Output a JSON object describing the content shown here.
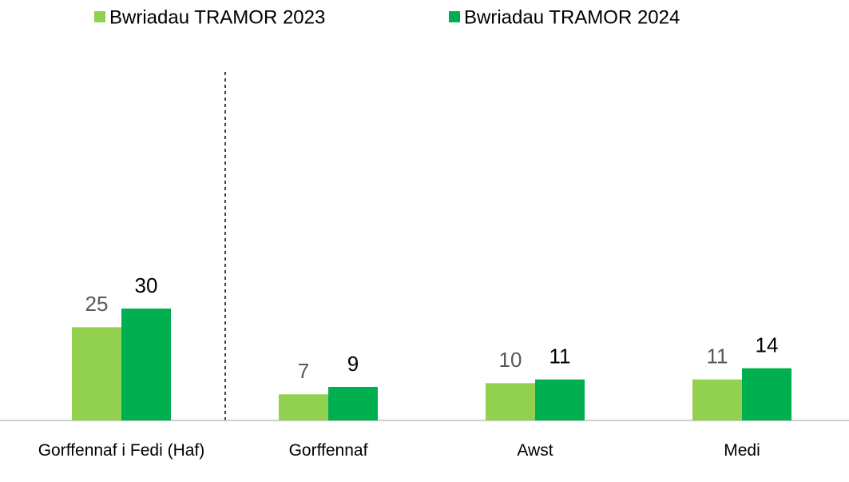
{
  "chart_data": {
    "type": "bar",
    "categories": [
      "Gorffennaf i Fedi (Haf)",
      "Gorffennaf",
      "Awst",
      "Medi"
    ],
    "series": [
      {
        "name": "Bwriadau TRAMOR 2023",
        "color": "#92d050",
        "label_color": "#595959",
        "values": [
          25,
          7,
          10,
          11
        ]
      },
      {
        "name": "Bwriadau TRAMOR 2024",
        "color": "#00b050",
        "label_color": "#000000",
        "values": [
          30,
          9,
          11,
          14
        ]
      }
    ],
    "legend": "top"
  }
}
